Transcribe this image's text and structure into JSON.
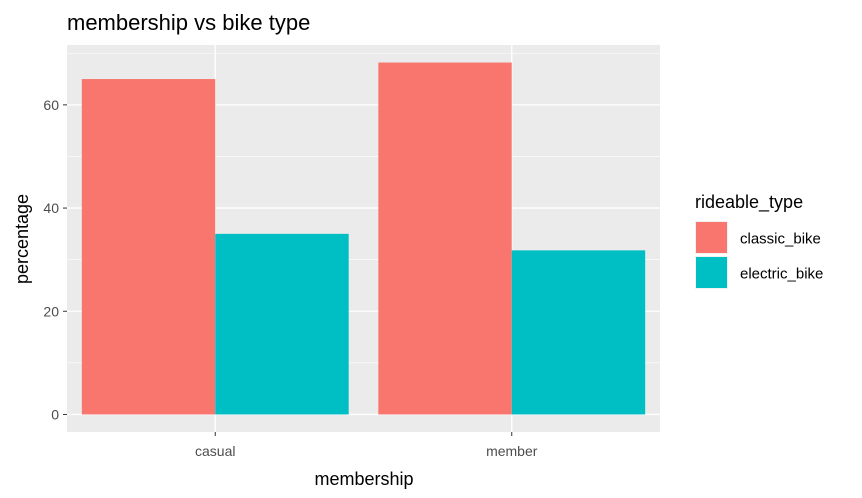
{
  "chart_data": {
    "type": "bar",
    "title": "membership vs bike type",
    "xlabel": "membership",
    "ylabel": "percentage",
    "categories": [
      "casual",
      "member"
    ],
    "series": [
      {
        "name": "classic_bike",
        "values": [
          65,
          68.2
        ],
        "color": "#F8766D"
      },
      {
        "name": "electric_bike",
        "values": [
          35,
          31.8
        ],
        "color": "#00BFC4"
      }
    ],
    "ylim": [
      -3.4,
      71.6
    ],
    "yticks": [
      0,
      20,
      40,
      60
    ],
    "ytick_labels": [
      "0",
      "20",
      "40",
      "60"
    ],
    "grid": true,
    "panel_background": "#EBEBEB",
    "legend": {
      "title": "rideable_type",
      "position": "right"
    }
  }
}
